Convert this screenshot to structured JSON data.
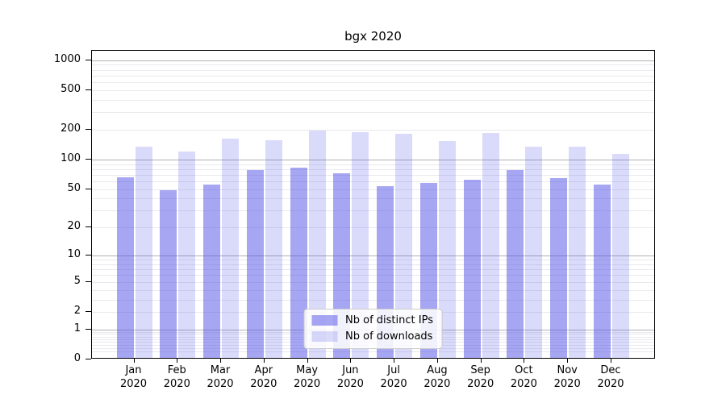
{
  "title": "bgx 2020",
  "chart_data": {
    "type": "bar",
    "title": "bgx 2020",
    "xlabel": "",
    "ylabel": "",
    "y_scale": "log1p",
    "ylim": [
      0,
      1240
    ],
    "y_ticks": [
      1000,
      500,
      200,
      100,
      50,
      20,
      10,
      5,
      2,
      1,
      0
    ],
    "gridlines": {
      "major": [
        1,
        10,
        100,
        1000
      ],
      "minor": [
        0.2,
        0.3,
        0.4,
        0.5,
        0.6,
        0.7,
        0.8,
        0.9,
        2,
        3,
        4,
        5,
        6,
        7,
        8,
        9,
        20,
        30,
        40,
        50,
        60,
        70,
        80,
        90,
        200,
        300,
        400,
        500,
        600,
        700,
        800,
        900
      ]
    },
    "categories": [
      [
        "Jan",
        "2020"
      ],
      [
        "Feb",
        "2020"
      ],
      [
        "Mar",
        "2020"
      ],
      [
        "Apr",
        "2020"
      ],
      [
        "May",
        "2020"
      ],
      [
        "Jun",
        "2020"
      ],
      [
        "Jul",
        "2020"
      ],
      [
        "Aug",
        "2020"
      ],
      [
        "Sep",
        "2020"
      ],
      [
        "Oct",
        "2020"
      ],
      [
        "Nov",
        "2020"
      ],
      [
        "Dec",
        "2020"
      ]
    ],
    "series": [
      {
        "name": "Nb of distinct IPs",
        "color": "rgba(85,85,230,0.52)",
        "values": [
          64,
          47,
          54,
          75,
          79,
          70,
          52,
          56,
          60,
          75,
          62,
          54
        ]
      },
      {
        "name": "Nb of downloads",
        "color": "rgba(85,85,230,0.22)",
        "values": [
          129,
          115,
          157,
          150,
          190,
          182,
          175,
          149,
          178,
          130,
          130,
          110
        ]
      }
    ],
    "legend": {
      "position": "lower center",
      "entries": [
        "Nb of distinct IPs",
        "Nb of downloads"
      ]
    }
  },
  "colors": {
    "bar_base": "#5555e6",
    "major_grid": "#b0b0b0",
    "minor_grid": "#e9e9ef",
    "spine": "#000000",
    "background": "#ffffff"
  }
}
